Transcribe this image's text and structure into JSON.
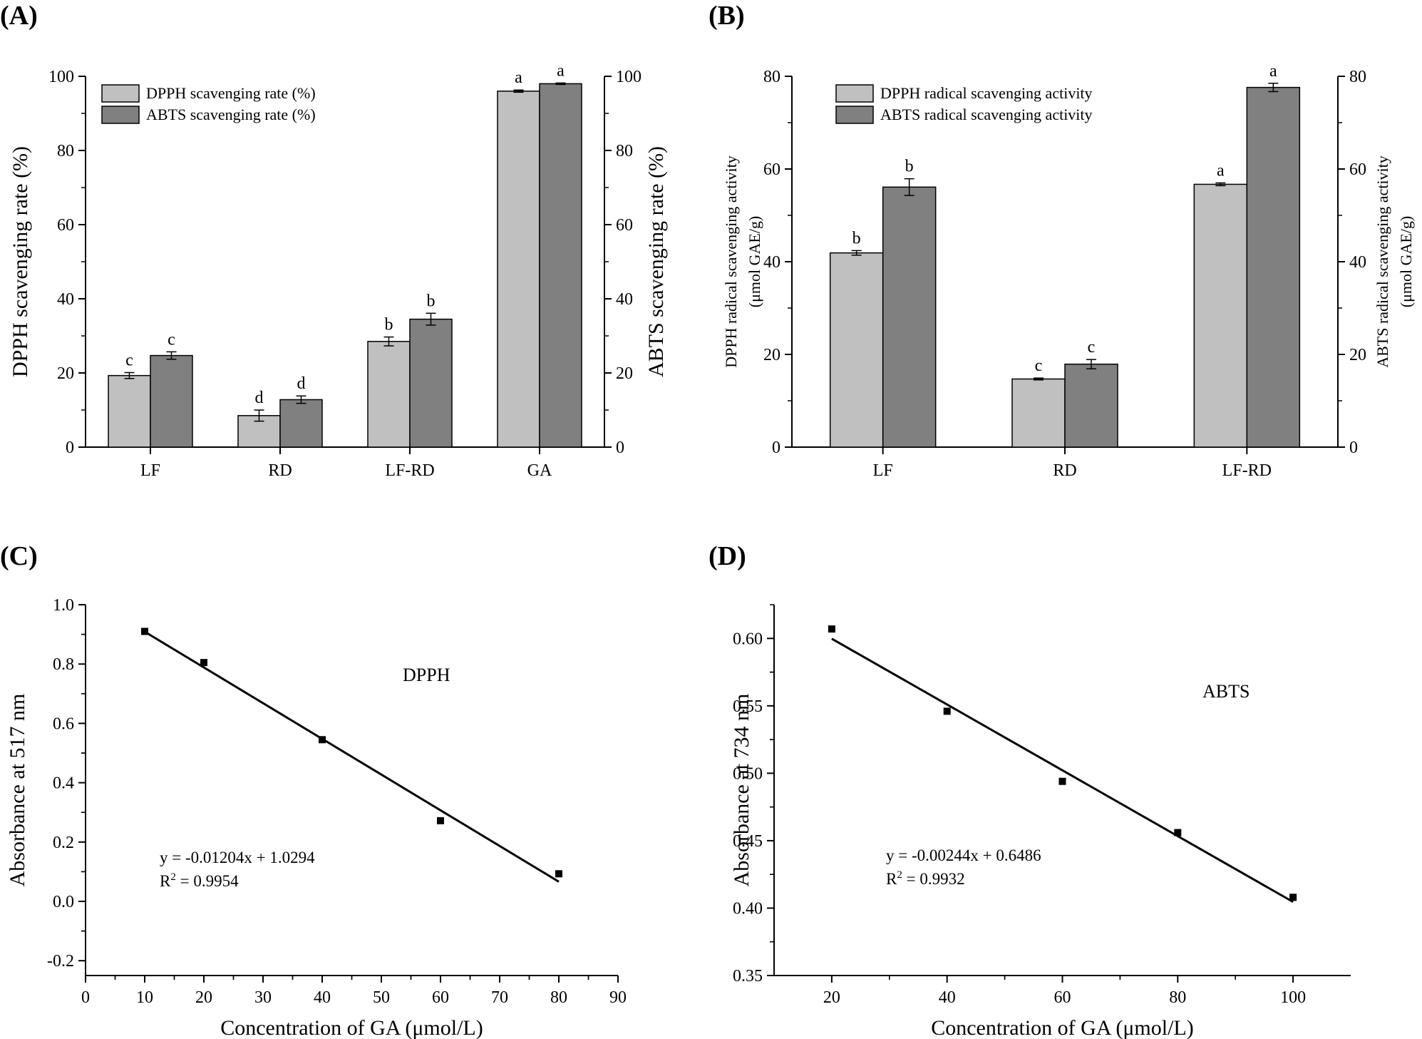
{
  "colors": {
    "dpph": "#c0c0c0",
    "abts": "#808080",
    "line": "#000000"
  },
  "chart_data": [
    {
      "panel": "(A)",
      "type": "bar",
      "categories": [
        "LF",
        "RD",
        "LF-RD",
        "GA"
      ],
      "series": [
        {
          "name": "DPPH  scavenging rate (%)",
          "values": [
            19.3,
            8.5,
            28.5,
            96.0
          ],
          "errors": [
            0.8,
            1.5,
            1.2,
            0.3
          ],
          "letters": [
            "c",
            "d",
            "b",
            "a"
          ]
        },
        {
          "name": "ABTS  scavenging rate (%)",
          "values": [
            24.7,
            12.8,
            34.5,
            98.0
          ],
          "errors": [
            1.0,
            1.0,
            1.6,
            0.2
          ],
          "letters": [
            "c",
            "d",
            "b",
            "a"
          ]
        }
      ],
      "ylabel": "DPPH  scavenging rate (%)",
      "ylabel_right": "ABTS  scavenging rate (%)",
      "ylim": [
        0,
        100
      ],
      "yticks": [
        "0",
        "20",
        "40",
        "60",
        "80",
        "100"
      ],
      "legend_loc": "top-left"
    },
    {
      "panel": "(B)",
      "type": "bar",
      "categories": [
        "LF",
        "RD",
        "LF-RD"
      ],
      "series": [
        {
          "name": "DPPH  radical scavenging activity",
          "values": [
            41.9,
            14.7,
            56.7
          ],
          "errors": [
            0.5,
            0.2,
            0.3
          ],
          "letters": [
            "b",
            "c",
            "a"
          ]
        },
        {
          "name": "ABTS  radical scavenging activity",
          "values": [
            56.1,
            17.9,
            77.6
          ],
          "errors": [
            1.8,
            1.0,
            0.9
          ],
          "letters": [
            "b",
            "c",
            "a"
          ]
        }
      ],
      "ylabel": [
        "DPPH  radical scavenging activity",
        "(μmol GAE/g)"
      ],
      "ylabel_right": [
        "ABTS  radical scavenging activity",
        "(μmol GAE/g)"
      ],
      "ylim": [
        0,
        80
      ],
      "yticks": [
        "0",
        "20",
        "40",
        "60",
        "80"
      ],
      "legend_loc": "top-left"
    },
    {
      "panel": "(C)",
      "type": "scatter",
      "x": [
        10,
        20,
        40,
        60,
        80
      ],
      "y": [
        0.91,
        0.805,
        0.545,
        0.272,
        0.093
      ],
      "fit": {
        "slope": -0.01204,
        "intercept": 1.0294
      },
      "equation": "y = -0.01204x + 1.0294",
      "r2": "R2 = 0.9954",
      "label": "DPPH",
      "xlabel": "Concentration of  GA (μmol/L)",
      "ylabel": "Absorbance at 517 nm",
      "xlim": [
        0,
        90
      ],
      "ylim": [
        -0.25,
        1.0
      ],
      "xticks": [
        "0",
        "10",
        "20",
        "30",
        "40",
        "50",
        "60",
        "70",
        "80",
        "90"
      ],
      "yticks": [
        "-0.2",
        "0.0",
        "0.2",
        "0.4",
        "0.6",
        "0.8",
        "1.0"
      ]
    },
    {
      "panel": "(D)",
      "type": "scatter",
      "x": [
        20,
        40,
        60,
        80,
        100
      ],
      "y": [
        0.607,
        0.546,
        0.494,
        0.456,
        0.408
      ],
      "fit": {
        "slope": -0.00244,
        "intercept": 0.6486
      },
      "equation": "y = -0.00244x + 0.6486",
      "r2": "R2 = 0.9932",
      "label": "ABTS",
      "xlabel": "Concentration of  GA (μmol/L)",
      "ylabel": "Absorbance at 734 nm",
      "xlim": [
        10,
        110
      ],
      "ylim": [
        0.35,
        0.625
      ],
      "xticks": [
        "20",
        "40",
        "60",
        "80",
        "100"
      ],
      "yticks": [
        "0.35",
        "0.40",
        "0.45",
        "0.50",
        "0.55",
        "0.60"
      ]
    }
  ]
}
